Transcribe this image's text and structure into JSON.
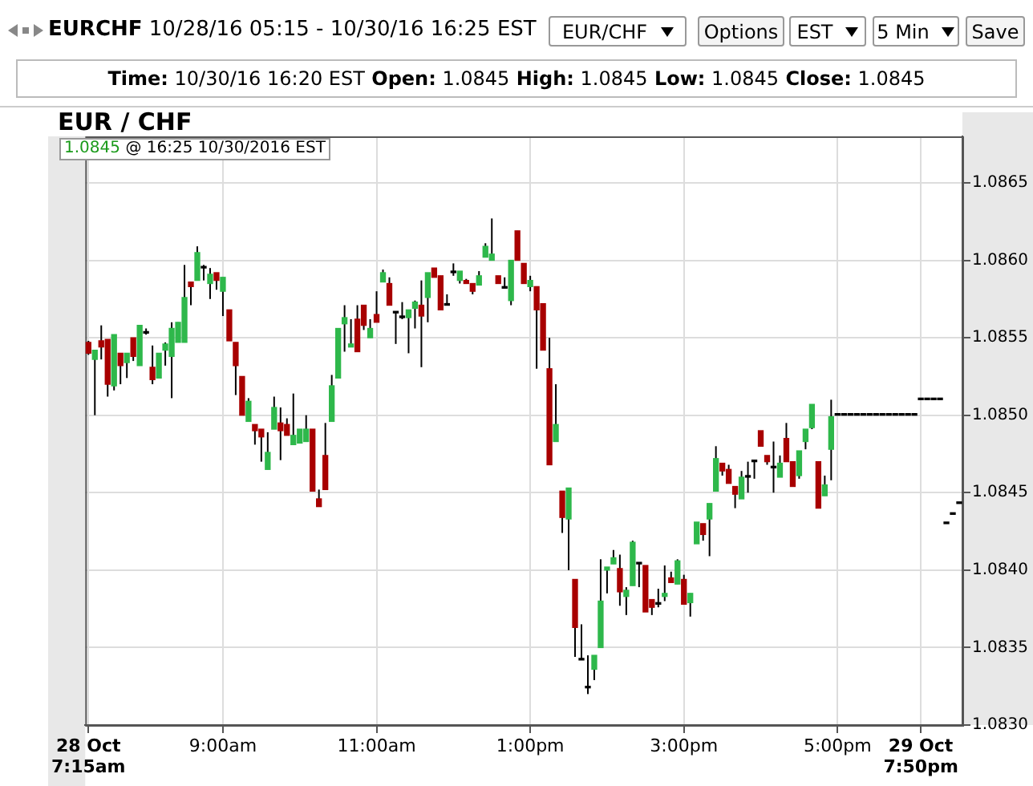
{
  "chart_data": {
    "type": "candlestick",
    "title": "EUR / CHF",
    "annotations": [
      "EURCHF 10/28/16 05:15 - 10/30/16 16:25 EST",
      "EUR/CHF",
      "Options",
      "EST",
      "5 Min",
      "Save",
      "Time: 10/30/16 16:20 EST Open: 1.0845 High: 1.0845 Low: 1.0845 Close: 1.0845",
      "1.0845 @ 16:25 10/30/2016 EST"
    ],
    "categories": [
      "28 Oct\n7:15am",
      null,
      null,
      null,
      null,
      null,
      null,
      null,
      null,
      null,
      null,
      null,
      null,
      null,
      null,
      null,
      null,
      null,
      null,
      null,
      null,
      "9:00am",
      null,
      null,
      null,
      null,
      null,
      null,
      null,
      null,
      null,
      null,
      null,
      null,
      null,
      null,
      null,
      null,
      null,
      null,
      null,
      null,
      null,
      null,
      null,
      "11:00am",
      null,
      null,
      null,
      null,
      null,
      null,
      null,
      null,
      null,
      null,
      null,
      null,
      null,
      null,
      null,
      null,
      null,
      null,
      null,
      null,
      null,
      null,
      null,
      "1:00pm",
      null,
      null,
      null,
      null,
      null,
      null,
      null,
      null,
      null,
      null,
      null,
      null,
      null,
      null,
      null,
      null,
      null,
      null,
      null,
      null,
      null,
      null,
      null,
      "3:00pm",
      null,
      null,
      null,
      null,
      null,
      null,
      null,
      null,
      null,
      null,
      null,
      null,
      null,
      null,
      null,
      null,
      null,
      null,
      null,
      null,
      null,
      null,
      null,
      "5:00pm",
      null,
      null,
      null,
      null,
      null,
      null,
      null,
      null,
      null,
      null,
      null,
      null,
      "29 Oct\n7:50pm",
      null,
      null,
      null,
      null,
      null,
      null
    ],
    "ohlc": [
      [
        1.08547,
        1.08548,
        1.08539,
        1.0854
      ],
      [
        1.08536,
        1.08542,
        1.085,
        1.08542
      ],
      [
        1.08548,
        1.08558,
        1.08536,
        1.08544
      ],
      [
        1.08549,
        1.08549,
        1.08512,
        1.0852
      ],
      [
        1.08519,
        1.08552,
        1.08516,
        1.08552
      ],
      [
        1.0854,
        1.0854,
        1.0852,
        1.08532
      ],
      [
        1.08534,
        1.0854,
        1.08524,
        1.0854
      ],
      [
        1.0855,
        1.0855,
        1.08535,
        1.08538
      ],
      [
        1.08532,
        1.08558,
        1.08532,
        1.08558
      ],
      [
        1.08553,
        1.08556,
        1.08552,
        1.08553
      ],
      [
        1.08531,
        1.08545,
        1.0852,
        1.08523
      ],
      [
        1.08524,
        1.0854,
        1.08524,
        1.0854
      ],
      [
        1.08542,
        1.08547,
        1.08532,
        1.08546
      ],
      [
        1.08538,
        1.0856,
        1.08511,
        1.08556
      ],
      [
        1.08547,
        1.0856,
        1.08547,
        1.0856
      ],
      [
        1.08547,
        1.08597,
        1.08547,
        1.08576
      ],
      [
        1.08586,
        1.08586,
        1.08571,
        1.08583
      ],
      [
        1.08587,
        1.08609,
        1.08587,
        1.08605
      ],
      [
        1.08595,
        1.08597,
        1.08587,
        1.08595
      ],
      [
        1.08585,
        1.08595,
        1.08575,
        1.08591
      ],
      [
        1.08592,
        1.08592,
        1.08581,
        1.08587
      ],
      [
        1.0858,
        1.08589,
        1.08564,
        1.08589
      ],
      [
        1.08568,
        1.08568,
        1.08548,
        1.08548
      ],
      [
        1.08547,
        1.08547,
        1.08513,
        1.08532
      ],
      [
        1.08525,
        1.08525,
        1.085,
        1.085
      ],
      [
        1.08496,
        1.08511,
        1.08496,
        1.08509
      ],
      [
        1.08494,
        1.08494,
        1.08481,
        1.0849
      ],
      [
        1.08491,
        1.08491,
        1.0847,
        1.08486
      ],
      [
        1.08465,
        1.08489,
        1.08465,
        1.08476
      ],
      [
        1.08491,
        1.08512,
        1.08491,
        1.08505
      ],
      [
        1.08495,
        1.08505,
        1.08471,
        1.0849
      ],
      [
        1.08494,
        1.08498,
        1.08487,
        1.08487
      ],
      [
        1.08481,
        1.08514,
        1.08481,
        1.08487
      ],
      [
        1.08482,
        1.08491,
        1.08482,
        1.08491
      ],
      [
        1.08483,
        1.085,
        1.08483,
        1.08491
      ],
      [
        1.08491,
        1.08491,
        1.08451,
        1.08451
      ],
      [
        1.08446,
        1.08452,
        1.08441,
        1.08441
      ],
      [
        1.08474,
        1.08495,
        1.08452,
        1.08452
      ],
      [
        1.08496,
        1.08526,
        1.08496,
        1.08519
      ],
      [
        1.08524,
        1.08556,
        1.08524,
        1.08556
      ],
      [
        1.08559,
        1.08571,
        1.08541,
        1.08563
      ],
      [
        1.08544,
        1.08562,
        1.08544,
        1.08546
      ],
      [
        1.08562,
        1.08571,
        1.08541,
        1.08541
      ],
      [
        1.08571,
        1.08571,
        1.08555,
        1.08558
      ],
      [
        1.0855,
        1.08562,
        1.0855,
        1.08556
      ],
      [
        1.08565,
        1.0858,
        1.0856,
        1.0856
      ],
      [
        1.08586,
        1.08594,
        1.08586,
        1.08592
      ],
      [
        1.08585,
        1.08589,
        1.08571,
        1.08571
      ],
      [
        1.08566,
        1.08566,
        1.08546,
        1.08566
      ],
      [
        1.08563,
        1.08573,
        1.08562,
        1.08563
      ],
      [
        1.08563,
        1.08568,
        1.0854,
        1.08568
      ],
      [
        1.08569,
        1.08574,
        1.08556,
        1.08573
      ],
      [
        1.08571,
        1.08587,
        1.08531,
        1.08564
      ],
      [
        1.08576,
        1.08592,
        1.0856,
        1.08592
      ],
      [
        1.08595,
        1.08595,
        1.08589,
        1.08589
      ],
      [
        1.0859,
        1.0859,
        1.08568,
        1.08568
      ],
      [
        1.08571,
        1.08578,
        1.08571,
        1.08571
      ],
      [
        1.08592,
        1.08598,
        1.0859,
        1.08592
      ],
      [
        1.08587,
        1.08593,
        1.08585,
        1.08593
      ],
      [
        1.08587,
        1.08588,
        1.08585,
        1.08585
      ],
      [
        1.08585,
        1.08585,
        1.08578,
        1.0858
      ],
      [
        1.08584,
        1.08593,
        1.08584,
        1.0859
      ],
      [
        1.08602,
        1.08611,
        1.08602,
        1.08609
      ],
      [
        1.086,
        1.08627,
        1.086,
        1.08604
      ],
      [
        1.0859,
        1.0859,
        1.08585,
        1.08585
      ],
      [
        1.08582,
        1.08589,
        1.08582,
        1.08582
      ],
      [
        1.08574,
        1.086,
        1.08571,
        1.086
      ],
      [
        1.08619,
        1.08619,
        1.086,
        1.086
      ],
      [
        1.08598,
        1.08598,
        1.08585,
        1.08585
      ],
      [
        1.08583,
        1.0859,
        1.0858,
        1.08587
      ],
      [
        1.08583,
        1.08583,
        1.0853,
        1.08568
      ],
      [
        1.08572,
        1.08572,
        1.08542,
        1.08542
      ],
      [
        1.0853,
        1.0855,
        1.08468,
        1.08468
      ],
      [
        1.08483,
        1.0852,
        1.08483,
        1.08494
      ],
      [
        1.08451,
        1.08451,
        1.08424,
        1.08434
      ],
      [
        1.08433,
        1.08453,
        1.084,
        1.08453
      ],
      [
        1.08394,
        1.08394,
        1.08344,
        1.08363
      ],
      [
        1.08342,
        1.08365,
        1.08342,
        1.08342
      ],
      [
        1.08324,
        1.08345,
        1.0832,
        1.08324
      ],
      [
        1.08336,
        1.08345,
        1.08329,
        1.08345
      ],
      [
        1.0835,
        1.08407,
        1.0835,
        1.0838
      ],
      [
        1.084,
        1.08402,
        1.08385,
        1.08402
      ],
      [
        1.08404,
        1.08413,
        1.08404,
        1.08408
      ],
      [
        1.08401,
        1.0841,
        1.08377,
        1.08386
      ],
      [
        1.08383,
        1.08389,
        1.08371,
        1.08387
      ],
      [
        1.0839,
        1.08419,
        1.0839,
        1.08418
      ],
      [
        1.08404,
        1.08404,
        1.08389,
        1.08404
      ],
      [
        1.08403,
        1.08403,
        1.08373,
        1.08373
      ],
      [
        1.08381,
        1.08381,
        1.08371,
        1.08376
      ],
      [
        1.08378,
        1.08388,
        1.08376,
        1.08378
      ],
      [
        1.08383,
        1.08403,
        1.0838,
        1.08385
      ],
      [
        1.08395,
        1.08399,
        1.08392,
        1.08392
      ],
      [
        1.08391,
        1.08407,
        1.08391,
        1.08406
      ],
      [
        1.08394,
        1.08397,
        1.08378,
        1.08378
      ],
      [
        1.08379,
        1.08385,
        1.0837,
        1.08385
      ],
      [
        1.08417,
        1.08431,
        1.08417,
        1.08431
      ],
      [
        1.0843,
        1.0843,
        1.08419,
        1.08423
      ],
      [
        1.08433,
        1.08443,
        1.08409,
        1.08443
      ],
      [
        1.08451,
        1.0848,
        1.08451,
        1.08472
      ],
      [
        1.08469,
        1.08469,
        1.08461,
        1.08464
      ],
      [
        1.08465,
        1.08468,
        1.08456,
        1.08456
      ],
      [
        1.08454,
        1.08454,
        1.0844,
        1.08449
      ],
      [
        1.08446,
        1.08464,
        1.08446,
        1.0846
      ],
      [
        1.0846,
        1.0847,
        1.0845,
        1.0846
      ],
      [
        1.0847,
        1.08471,
        1.08459,
        1.0847
      ],
      [
        1.0849,
        1.0849,
        1.0848,
        1.0848
      ],
      [
        1.08474,
        1.08474,
        1.08468,
        1.0847
      ],
      [
        1.08466,
        1.08483,
        1.0845,
        1.08467
      ],
      [
        1.0846,
        1.08474,
        1.0846,
        1.08469
      ],
      [
        1.08485,
        1.08495,
        1.0847,
        1.0847
      ],
      [
        1.0847,
        1.0847,
        1.08454,
        1.08454
      ],
      [
        1.08461,
        1.08477,
        1.08459,
        1.08477
      ],
      [
        1.08483,
        1.08491,
        1.08478,
        1.08491
      ],
      [
        1.08492,
        1.08507,
        1.08491,
        1.08507
      ],
      [
        1.0847,
        1.0847,
        1.0844,
        1.0844
      ],
      [
        1.08448,
        1.08461,
        1.08448,
        1.08455
      ],
      [
        1.08478,
        1.0851,
        1.08458,
        1.08499
      ],
      [
        1.085,
        1.085,
        1.085,
        1.085
      ],
      [
        1.085,
        1.085,
        1.085,
        1.085
      ],
      [
        1.085,
        1.085,
        1.085,
        1.085
      ],
      [
        1.085,
        1.085,
        1.085,
        1.085
      ],
      [
        1.085,
        1.085,
        1.085,
        1.085
      ],
      [
        1.085,
        1.085,
        1.085,
        1.085
      ],
      [
        1.085,
        1.085,
        1.085,
        1.085
      ],
      [
        1.085,
        1.085,
        1.085,
        1.085
      ],
      [
        1.085,
        1.085,
        1.085,
        1.085
      ],
      [
        1.085,
        1.085,
        1.085,
        1.085
      ],
      [
        1.085,
        1.085,
        1.085,
        1.085
      ],
      [
        1.085,
        1.085,
        1.085,
        1.085
      ],
      [
        1.085,
        1.085,
        1.085,
        1.085
      ],
      [
        1.0851,
        1.0851,
        1.0851,
        1.0851
      ],
      [
        1.0851,
        1.0851,
        1.0851,
        1.0851
      ],
      [
        1.0851,
        1.0851,
        1.0851,
        1.0851
      ],
      [
        1.0851,
        1.0851,
        1.0851,
        1.0851
      ],
      [
        1.0843,
        1.0843,
        1.0843,
        1.0843
      ],
      [
        1.08436,
        1.08436,
        1.08436,
        1.08436
      ],
      [
        1.08443,
        1.08443,
        1.08443,
        1.08443
      ]
    ],
    "colors": [
      "#a80000",
      "#2eb84b",
      "#a80000",
      "#a80000",
      "#2eb84b",
      "#a80000",
      "#2eb84b",
      "#a80000",
      "#2eb84b",
      "#000000",
      "#a80000",
      "#2eb84b",
      "#2eb84b",
      "#2eb84b",
      "#2eb84b",
      "#2eb84b",
      "#a80000",
      "#2eb84b",
      "#000000",
      "#2eb84b",
      "#a80000",
      "#2eb84b",
      "#a80000",
      "#a80000",
      "#a80000",
      "#2eb84b",
      "#a80000",
      "#a80000",
      "#2eb84b",
      "#2eb84b",
      "#a80000",
      "#a80000",
      "#2eb84b",
      "#2eb84b",
      "#2eb84b",
      "#a80000",
      "#a80000",
      "#a80000",
      "#2eb84b",
      "#2eb84b",
      "#2eb84b",
      "#2eb84b",
      "#a80000",
      "#a80000",
      "#2eb84b",
      "#a80000",
      "#2eb84b",
      "#a80000",
      "#000000",
      "#000000",
      "#2eb84b",
      "#2eb84b",
      "#a80000",
      "#2eb84b",
      "#a80000",
      "#a80000",
      "#000000",
      "#000000",
      "#2eb84b",
      "#a80000",
      "#a80000",
      "#2eb84b",
      "#2eb84b",
      "#2eb84b",
      "#a80000",
      "#000000",
      "#2eb84b",
      "#a80000",
      "#a80000",
      "#2eb84b",
      "#a80000",
      "#a80000",
      "#a80000",
      "#2eb84b",
      "#a80000",
      "#2eb84b",
      "#a80000",
      "#000000",
      "#000000",
      "#2eb84b",
      "#2eb84b",
      "#2eb84b",
      "#2eb84b",
      "#a80000",
      "#2eb84b",
      "#2eb84b",
      "#000000",
      "#a80000",
      "#a80000",
      "#000000",
      "#2eb84b",
      "#a80000",
      "#2eb84b",
      "#a80000",
      "#2eb84b",
      "#2eb84b",
      "#a80000",
      "#2eb84b",
      "#2eb84b",
      "#a80000",
      "#a80000",
      "#a80000",
      "#2eb84b",
      "#000000",
      "#000000",
      "#a80000",
      "#a80000",
      "#000000",
      "#2eb84b",
      "#a80000",
      "#a80000",
      "#2eb84b",
      "#2eb84b",
      "#2eb84b",
      "#a80000",
      "#2eb84b",
      "#2eb84b",
      "#000000",
      "#000000",
      "#000000",
      "#000000",
      "#000000",
      "#000000",
      "#000000",
      "#000000",
      "#000000",
      "#000000",
      "#000000",
      "#000000",
      "#000000",
      "#000000",
      "#000000",
      "#000000",
      "#000000",
      "#000000",
      "#000000",
      "#000000"
    ],
    "ylim": [
      1.083,
      1.0868
    ],
    "yticks": [
      {
        "value": 1.083,
        "label": "1.0830"
      },
      1.0835,
      {
        "value": 1.084,
        "label": "1.0840"
      },
      1.0845,
      {
        "value": 1.085,
        "label": "1.0850"
      },
      1.0855,
      {
        "value": 1.086,
        "label": "1.0860"
      },
      1.0865
    ],
    "grid": true
  }
}
